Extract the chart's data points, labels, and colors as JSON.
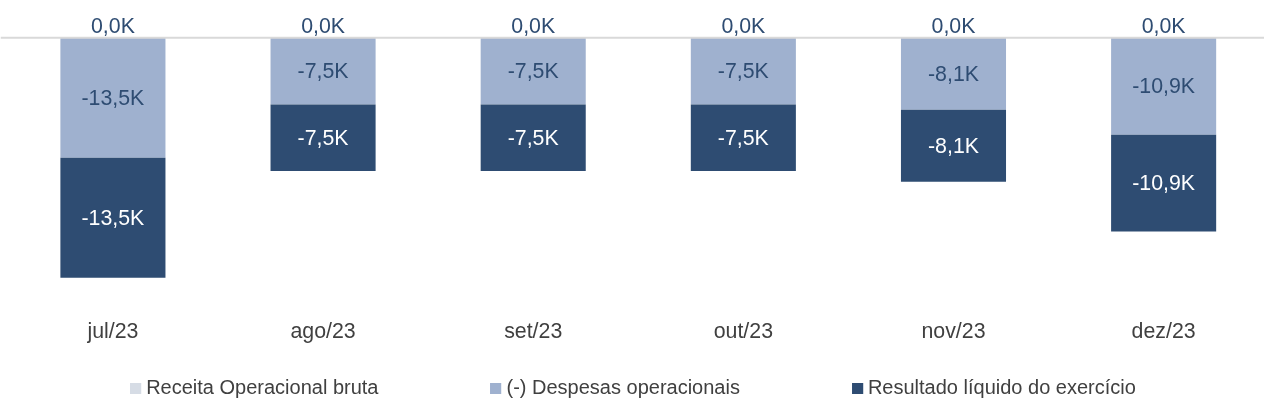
{
  "chart_data": {
    "type": "bar",
    "stacked": true,
    "categories": [
      "jul/23",
      "ago/23",
      "set/23",
      "out/23",
      "nov/23",
      "dez/23"
    ],
    "series": [
      {
        "name": "Receita Operacional bruta",
        "color": "#d6dce5",
        "values": [
          0,
          0,
          0,
          0,
          0,
          0
        ],
        "value_labels": [
          "0,0K",
          "0,0K",
          "0,0K",
          "0,0K",
          "0,0K",
          "0,0K"
        ]
      },
      {
        "name": "(-) Despesas operacionais",
        "color": "#9fb1cf",
        "values": [
          -13.5,
          -7.5,
          -7.5,
          -7.5,
          -8.1,
          -10.9
        ],
        "value_labels": [
          "-13,5K",
          "-7,5K",
          "-7,5K",
          "-7,5K",
          "-8,1K",
          "-10,9K"
        ]
      },
      {
        "name": "Resultado líquido do exercício",
        "color": "#2e4c72",
        "values": [
          -13.5,
          -7.5,
          -7.5,
          -7.5,
          -8.1,
          -10.9
        ],
        "value_labels": [
          "-13,5K",
          "-7,5K",
          "-7,5K",
          "-7,5K",
          "-8,1K",
          "-10,9K"
        ]
      }
    ],
    "data_labels": true,
    "legend": "bottom",
    "grid": false
  }
}
